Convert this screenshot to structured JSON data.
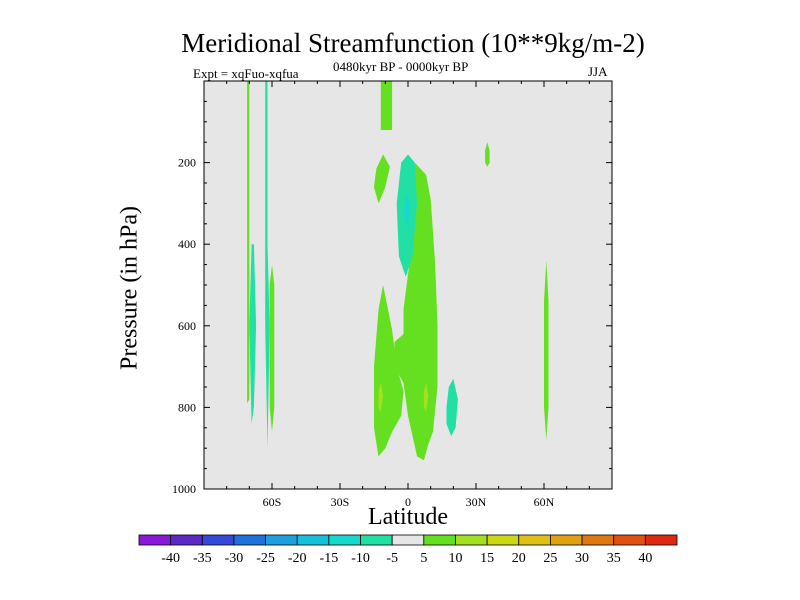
{
  "chart_data": {
    "type": "contour",
    "title": "Meridional Streamfunction (10**9kg/m-2)",
    "subtitle_left": "Expt = xqFuo-xqfua",
    "subtitle_center": "0480kyr BP - 0000kyr BP",
    "subtitle_right": "JJA",
    "xlabel": "Latitude",
    "ylabel": "Pressure (in hPa)",
    "xlim": [
      -90,
      90
    ],
    "ylim": [
      1000,
      0
    ],
    "x_ticks": [
      {
        "value": -60,
        "label": "60S"
      },
      {
        "value": -30,
        "label": "30S"
      },
      {
        "value": 0,
        "label": "0"
      },
      {
        "value": 30,
        "label": "30N"
      },
      {
        "value": 60,
        "label": "60N"
      }
    ],
    "y_ticks": [
      {
        "value": 200,
        "label": "200"
      },
      {
        "value": 400,
        "label": "400"
      },
      {
        "value": 600,
        "label": "600"
      },
      {
        "value": 800,
        "label": "800"
      },
      {
        "value": 1000,
        "label": "1000"
      }
    ],
    "background_color": "#e6e6e6",
    "colorbar": {
      "levels": [
        -40,
        -35,
        -30,
        -25,
        -20,
        -15,
        -10,
        -5,
        5,
        10,
        15,
        20,
        25,
        30,
        35,
        40
      ],
      "colors": [
        "#8a18d8",
        "#5c28c8",
        "#3648d8",
        "#1f72dc",
        "#1ea0dc",
        "#14c0dc",
        "#16d8cc",
        "#22e0a4",
        "#e6e6e6",
        "#64e020",
        "#a2e020",
        "#ccd814",
        "#e0c014",
        "#e0a010",
        "#e07810",
        "#e05010",
        "#e02810"
      ]
    },
    "regions": [
      {
        "level": "5 to 10",
        "polygon": [
          [
            -12,
            0
          ],
          [
            -7,
            0
          ],
          [
            -7,
            120
          ],
          [
            -12,
            120
          ]
        ]
      },
      {
        "level": "5 to 10",
        "polygon": [
          [
            -14,
            215
          ],
          [
            -11,
            180
          ],
          [
            -8,
            210
          ],
          [
            -10,
            260
          ],
          [
            -13,
            300
          ],
          [
            -15,
            260
          ]
        ]
      },
      {
        "level": "5 to 10",
        "polygon": [
          [
            -71,
            0
          ],
          [
            -70,
            0
          ],
          [
            -70,
            780
          ],
          [
            -71,
            790
          ]
        ]
      },
      {
        "level": "5 to 10",
        "polygon": [
          [
            -61,
            500
          ],
          [
            -60,
            450
          ],
          [
            -59,
            500
          ],
          [
            -59,
            800
          ],
          [
            -60,
            860
          ],
          [
            -61,
            800
          ]
        ]
      },
      {
        "level": "-10 to -5",
        "polygon": [
          [
            -63,
            0
          ],
          [
            -62,
            0
          ],
          [
            -62,
            400
          ],
          [
            -61,
            600
          ],
          [
            -62,
            900
          ],
          [
            -63,
            600
          ],
          [
            -63,
            400
          ]
        ]
      },
      {
        "level": "-10 to -5",
        "polygon": [
          [
            -69,
            400
          ],
          [
            -68,
            400
          ],
          [
            -67,
            600
          ],
          [
            -68,
            800
          ],
          [
            -69,
            840
          ],
          [
            -70,
            600
          ]
        ]
      },
      {
        "level": "5 to 10",
        "polygon": [
          [
            -13,
            560
          ],
          [
            -11,
            500
          ],
          [
            -7,
            610
          ],
          [
            -5,
            700
          ],
          [
            -2,
            760
          ],
          [
            -3,
            820
          ],
          [
            -7,
            860
          ],
          [
            -10,
            900
          ],
          [
            -13,
            920
          ],
          [
            -15,
            850
          ],
          [
            -15,
            700
          ]
        ]
      },
      {
        "level": "5 to 10",
        "polygon": [
          [
            -6,
            640
          ],
          [
            -2,
            620
          ],
          [
            -2,
            560
          ],
          [
            1,
            430
          ],
          [
            3,
            350
          ],
          [
            3,
            200
          ],
          [
            8,
            230
          ],
          [
            10,
            290
          ],
          [
            12,
            450
          ],
          [
            13,
            600
          ],
          [
            13,
            750
          ],
          [
            11,
            860
          ],
          [
            9,
            890
          ],
          [
            7,
            930
          ],
          [
            4,
            920
          ],
          [
            0,
            820
          ],
          [
            -2,
            740
          ],
          [
            -6,
            700
          ]
        ]
      },
      {
        "level": "-10 to -5",
        "polygon": [
          [
            -5,
            300
          ],
          [
            -3,
            200
          ],
          [
            0,
            180
          ],
          [
            3,
            200
          ],
          [
            4,
            300
          ],
          [
            2,
            430
          ],
          [
            -1,
            480
          ],
          [
            -4,
            430
          ]
        ]
      },
      {
        "level": "-10 to -5",
        "polygon": [
          [
            17,
            800
          ],
          [
            18,
            750
          ],
          [
            20,
            730
          ],
          [
            22,
            780
          ],
          [
            21,
            850
          ],
          [
            19,
            870
          ],
          [
            17,
            840
          ]
        ]
      },
      {
        "level": "5 to 10",
        "polygon": [
          [
            34,
            170
          ],
          [
            35,
            150
          ],
          [
            36,
            170
          ],
          [
            36,
            200
          ],
          [
            35,
            210
          ],
          [
            34,
            200
          ]
        ]
      },
      {
        "level": "5 to 10",
        "polygon": [
          [
            60,
            540
          ],
          [
            61,
            440
          ],
          [
            62,
            540
          ],
          [
            62,
            800
          ],
          [
            61,
            880
          ],
          [
            60,
            800
          ]
        ]
      },
      {
        "level": "10 to 15",
        "polygon": [
          [
            -13,
            760
          ],
          [
            -12,
            740
          ],
          [
            -11,
            770
          ],
          [
            -12,
            810
          ],
          [
            -13,
            800
          ]
        ]
      },
      {
        "level": "10 to 15",
        "polygon": [
          [
            7,
            760
          ],
          [
            8,
            740
          ],
          [
            9,
            770
          ],
          [
            8,
            810
          ],
          [
            7,
            800
          ]
        ]
      },
      {
        "level": "-15 to -10",
        "polygon": [
          [
            -2,
            330
          ],
          [
            -1,
            280
          ],
          [
            1,
            300
          ],
          [
            0,
            360
          ]
        ]
      }
    ]
  }
}
